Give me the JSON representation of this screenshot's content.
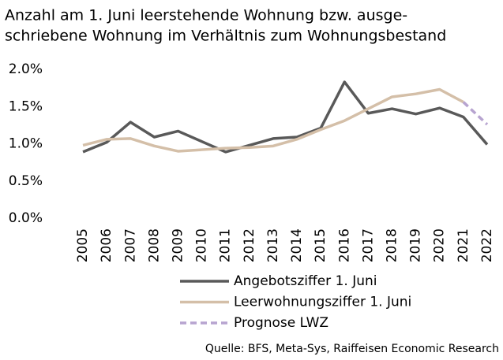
{
  "chart_data": {
    "type": "line",
    "title": [
      "Anzahl am 1. Juni leerstehende Wohnung bzw. ausge-",
      "schriebene Wohnung im Verhältnis zum Wohnungsbestand"
    ],
    "source": "Quelle: BFS, Meta-Sys, Raiffeisen Economic Research",
    "categories": [
      "2005",
      "2006",
      "2007",
      "2008",
      "2009",
      "2010",
      "2011",
      "2012",
      "2013",
      "2014",
      "2015",
      "2016",
      "2017",
      "2018",
      "2019",
      "2020",
      "2021",
      "2022"
    ],
    "ylim": [
      0,
      2
    ],
    "yticks": [
      {
        "value": 0,
        "label": "0.0%"
      },
      {
        "value": 0.5,
        "label": "0.5%"
      },
      {
        "value": 1,
        "label": "1.0%"
      },
      {
        "value": 1.5,
        "label": "1.5%"
      },
      {
        "value": 2,
        "label": "2.0%"
      }
    ],
    "series": [
      {
        "name": "Angebotsziffer 1. Juni",
        "color": "#595959",
        "linestyle": "solid",
        "values": [
          0.89,
          1.02,
          1.29,
          1.09,
          1.17,
          1.03,
          0.89,
          0.98,
          1.07,
          1.09,
          1.21,
          1.83,
          1.41,
          1.47,
          1.4,
          1.48,
          1.36,
          0.99
        ]
      },
      {
        "name": "Leerwohnungsziffer 1. Juni",
        "color": "#d4bfa8",
        "linestyle": "solid",
        "values": [
          0.98,
          1.06,
          1.07,
          0.97,
          0.9,
          0.92,
          0.94,
          0.95,
          0.97,
          1.06,
          1.19,
          1.31,
          1.47,
          1.63,
          1.67,
          1.73,
          1.56,
          null
        ]
      },
      {
        "name": "Prognose LWZ",
        "color": "#b7a4d0",
        "linestyle": "dashed",
        "values": [
          null,
          null,
          null,
          null,
          null,
          null,
          null,
          null,
          null,
          null,
          null,
          null,
          null,
          null,
          null,
          null,
          1.56,
          1.26
        ]
      }
    ]
  }
}
